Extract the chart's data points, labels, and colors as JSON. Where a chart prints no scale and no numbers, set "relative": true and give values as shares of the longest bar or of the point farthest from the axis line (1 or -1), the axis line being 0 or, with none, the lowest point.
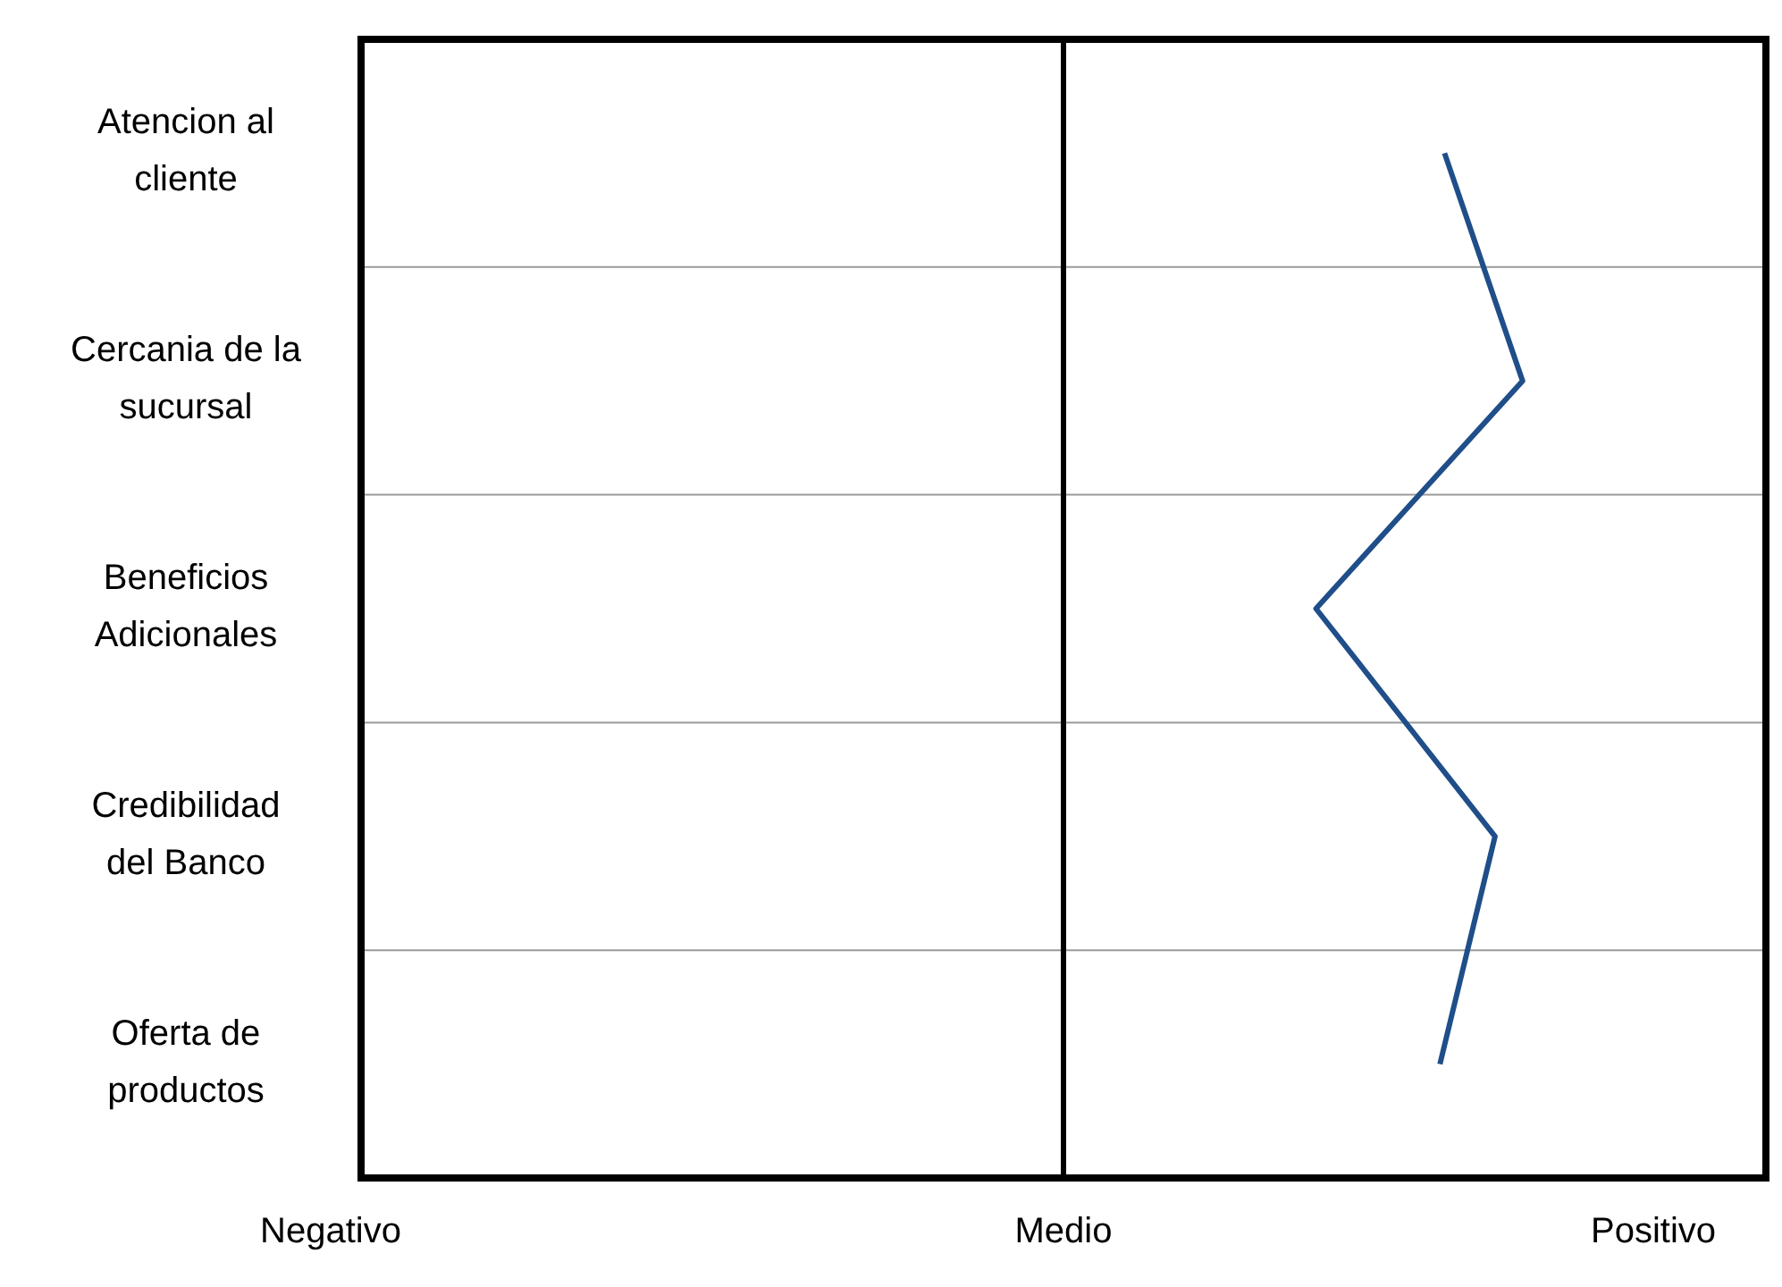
{
  "chart_data": {
    "type": "line",
    "orientation": "horizontal",
    "relative": true,
    "categories": [
      "Atencion al cliente",
      "Cercania de la sucursal",
      "Beneficios Adicionales",
      "Credibilidad del Banco",
      "Oferta de productos"
    ],
    "series": [
      {
        "color": "#1f4e89",
        "values": [
          0.83,
          1,
          0.55,
          0.94,
          0.82
        ]
      }
    ],
    "annotations": [
      "Negativo",
      "Medio",
      "Positivo"
    ],
    "ref_lines": [
      {
        "axis": "x",
        "value": 0,
        "color": "#000000"
      }
    ],
    "grid": "y",
    "marker": "none",
    "line_style": "solid"
  }
}
